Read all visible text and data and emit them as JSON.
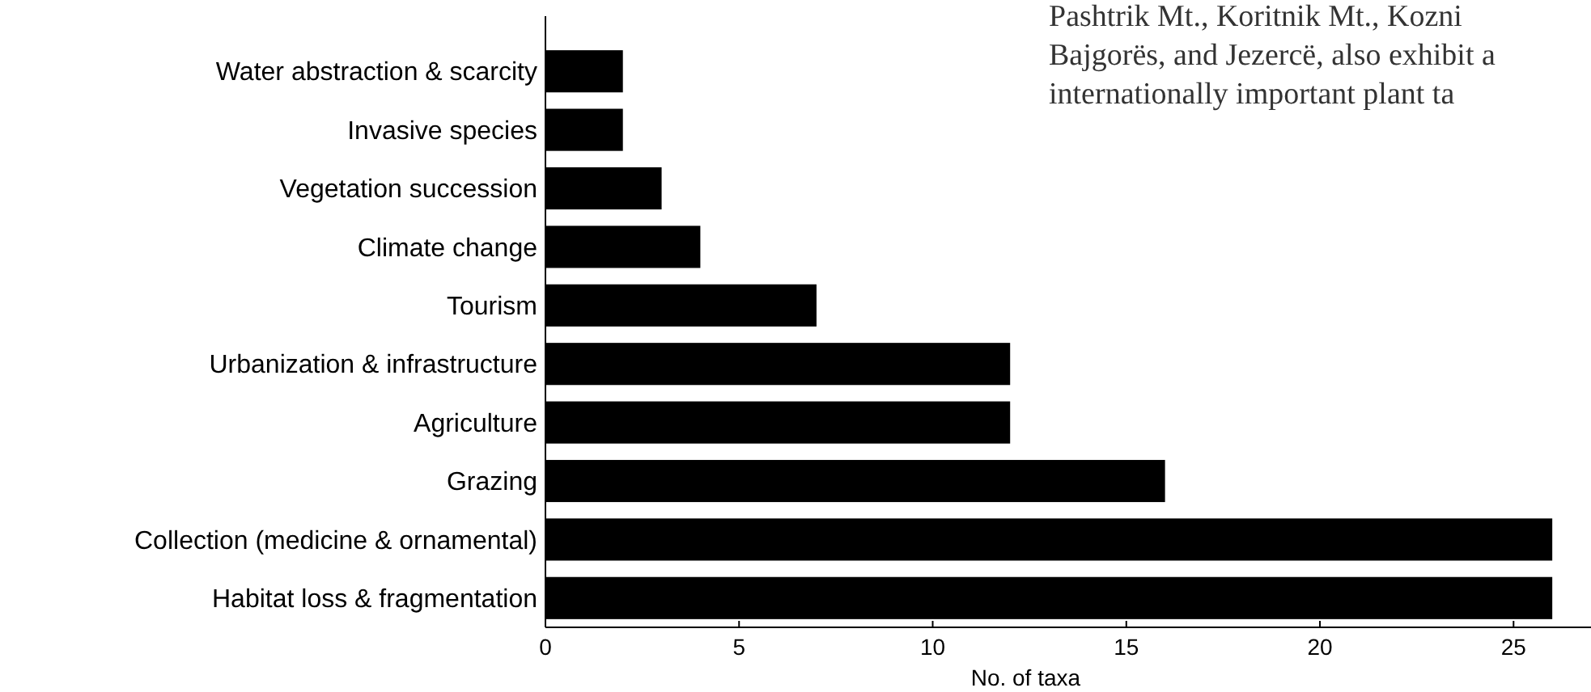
{
  "chart_data": {
    "type": "bar",
    "orientation": "horizontal",
    "xlabel": "No. of taxa",
    "categories": [
      "Water abstraction & scarcity",
      "Invasive species",
      "Vegetation succession",
      "Climate change",
      "Tourism",
      "Urbanization & infrastructure",
      "Agriculture",
      "Grazing",
      "Collection (medicine & ornamental)",
      "Habitat loss & fragmentation"
    ],
    "values": [
      2,
      2,
      3,
      4,
      7,
      12,
      12,
      16,
      26,
      26
    ],
    "color": "#000000",
    "xlim": [
      0,
      27
    ],
    "xticks": [
      0,
      5,
      10,
      15,
      20,
      25
    ],
    "grid": false,
    "annotations": [
      "Pashtrik Mt., Koritnik Mt., Kozni",
      "Bajgorës, and Jezercë, also exhibit a",
      "internationally important plant ta"
    ]
  }
}
